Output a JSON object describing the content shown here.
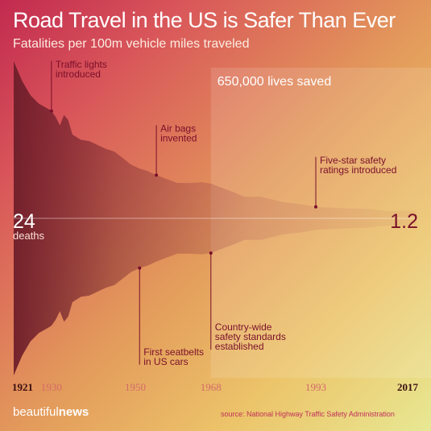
{
  "header": {
    "title": "Road Travel in the US is Safer Than Ever",
    "subtitle": "Fatalities per 100m vehicle miles traveled"
  },
  "footer": {
    "brand_light": "beautiful",
    "brand_bold": "news",
    "source": "source: National Highway Traffic Safety Administration"
  },
  "colors": {
    "area_dark": "#6e1e2a",
    "annotation_dark": "#7a0f2a",
    "annotation_light": "#c0305a"
  },
  "chart_data": {
    "type": "area",
    "title": "Road Travel in the US is Safer Than Ever",
    "ylabel": "Fatalities per 100m vehicle miles traveled",
    "xlim": [
      1921,
      2017
    ],
    "ylim": [
      0,
      24
    ],
    "mirrored": true,
    "x": [
      1921,
      1923,
      1925,
      1927,
      1929,
      1930,
      1931,
      1932,
      1933,
      1934,
      1935,
      1937,
      1939,
      1941,
      1943,
      1945,
      1947,
      1949,
      1951,
      1953,
      1955,
      1957,
      1960,
      1963,
      1966,
      1968,
      1970,
      1973,
      1976,
      1980,
      1985,
      1990,
      1993,
      2000,
      2005,
      2010,
      2017
    ],
    "values": [
      24,
      21,
      18.8,
      17.5,
      16.8,
      16.4,
      15.5,
      14.2,
      15.8,
      15,
      12.8,
      12,
      11.8,
      11.2,
      10.6,
      10.2,
      9.2,
      8.2,
      7.6,
      7.2,
      6.6,
      6.1,
      5.4,
      5.4,
      5.5,
      5.3,
      4.8,
      4.1,
      3.3,
      3.3,
      2.5,
      2.1,
      1.75,
      1.53,
      1.45,
      1.11,
      1.2
    ],
    "start_label": {
      "value": "24",
      "unit": "deaths"
    },
    "end_label": "1.2",
    "shaded_region": {
      "from": 1968,
      "to": 2017,
      "label": "650,000 lives saved"
    },
    "tick_years": [
      {
        "year": 1921,
        "label": "1921",
        "emphasis": true
      },
      {
        "year": 1930,
        "label": "1930",
        "emphasis": false
      },
      {
        "year": 1950,
        "label": "1950",
        "emphasis": false
      },
      {
        "year": 1968,
        "label": "1968",
        "emphasis": false
      },
      {
        "year": 1993,
        "label": "1993",
        "emphasis": false
      },
      {
        "year": 2017,
        "label": "2017",
        "emphasis": true
      }
    ],
    "annotations": [
      {
        "year": 1930,
        "side": "top",
        "lines": [
          "Traffic lights",
          "introduced"
        ]
      },
      {
        "year": 1955,
        "side": "top",
        "lines": [
          "Air bags",
          "invented"
        ]
      },
      {
        "year": 1993,
        "side": "top",
        "lines": [
          "Five-star safety",
          "ratings introduced"
        ]
      },
      {
        "year": 1951,
        "side": "bottom",
        "lines": [
          "First seatbelts",
          "in US cars"
        ]
      },
      {
        "year": 1968,
        "side": "bottom",
        "lines": [
          "Country-wide",
          "safety standards",
          "established"
        ]
      }
    ]
  }
}
